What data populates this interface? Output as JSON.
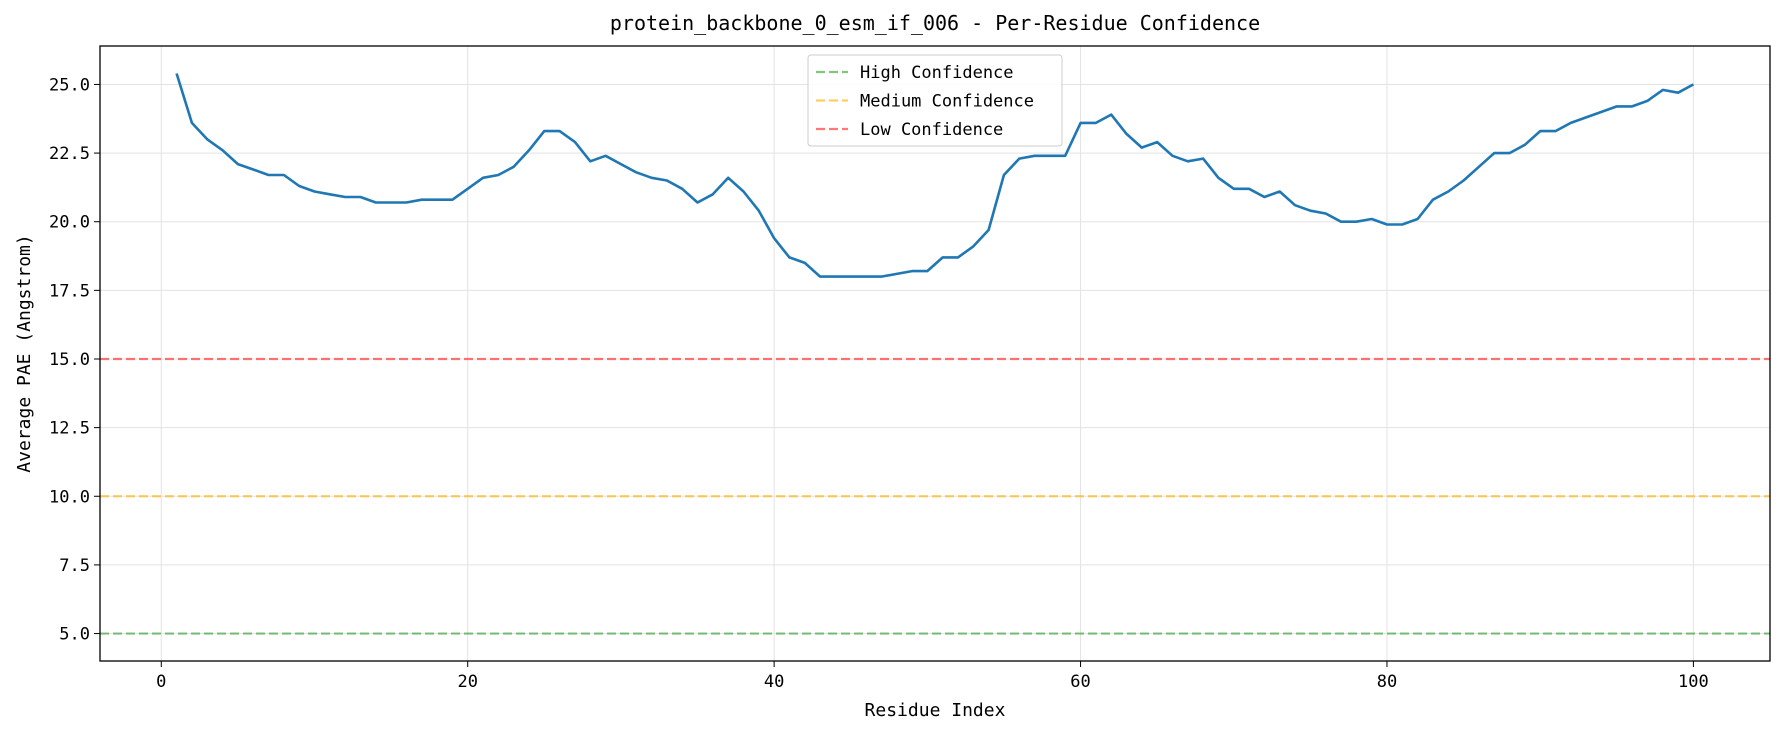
{
  "chart_data": {
    "type": "line",
    "title": "protein_backbone_0_esm_if_006 - Per-Residue Confidence",
    "xlabel": "Residue Index",
    "ylabel": "Average PAE (Angstrom)",
    "xlim": [
      -4,
      105
    ],
    "ylim": [
      4.0,
      26.4
    ],
    "x_ticks": [
      0,
      20,
      40,
      60,
      80,
      100
    ],
    "y_ticks": [
      5.0,
      7.5,
      10.0,
      12.5,
      15.0,
      17.5,
      20.0,
      22.5,
      25.0
    ],
    "x_tick_labels": [
      "0",
      "20",
      "40",
      "60",
      "80",
      "100"
    ],
    "y_tick_labels": [
      "5.0",
      "7.5",
      "10.0",
      "12.5",
      "15.0",
      "17.5",
      "20.0",
      "22.5",
      "25.0"
    ],
    "grid": true,
    "legend_position": "top-center",
    "series": [
      {
        "color": "#1f77b4",
        "x": [
          1,
          2,
          3,
          4,
          5,
          6,
          7,
          8,
          9,
          10,
          11,
          12,
          13,
          14,
          15,
          16,
          17,
          18,
          19,
          20,
          21,
          22,
          23,
          24,
          25,
          26,
          27,
          28,
          29,
          30,
          31,
          32,
          33,
          34,
          35,
          36,
          37,
          38,
          39,
          40,
          41,
          42,
          43,
          44,
          45,
          46,
          47,
          48,
          49,
          50,
          51,
          52,
          53,
          54,
          55,
          56,
          57,
          58,
          59,
          60,
          61,
          62,
          63,
          64,
          65,
          66,
          67,
          68,
          69,
          70,
          71,
          72,
          73,
          74,
          75,
          76,
          77,
          78,
          79,
          80,
          81,
          82,
          83,
          84,
          85,
          86,
          87,
          88,
          89,
          90,
          91,
          92,
          93,
          94,
          95,
          96,
          97,
          98,
          99,
          100
        ],
        "values": [
          25.4,
          23.6,
          23.0,
          22.6,
          22.1,
          21.9,
          21.7,
          21.7,
          21.3,
          21.1,
          21.0,
          20.9,
          20.9,
          20.7,
          20.7,
          20.7,
          20.8,
          20.8,
          20.8,
          21.2,
          21.6,
          21.7,
          22.0,
          22.6,
          23.3,
          23.3,
          22.9,
          22.2,
          22.4,
          22.1,
          21.8,
          21.6,
          21.5,
          21.2,
          20.7,
          21.0,
          21.6,
          21.1,
          20.4,
          19.4,
          18.7,
          18.5,
          18.0,
          18.0,
          18.0,
          18.0,
          18.0,
          18.1,
          18.2,
          18.2,
          18.7,
          18.7,
          19.1,
          19.7,
          21.7,
          22.3,
          22.4,
          22.4,
          22.4,
          23.6,
          23.6,
          23.9,
          23.2,
          22.7,
          22.9,
          22.4,
          22.2,
          22.3,
          21.6,
          21.2,
          21.2,
          20.9,
          21.1,
          20.6,
          20.4,
          20.3,
          20.0,
          20.0,
          20.1,
          19.9,
          19.9,
          20.1,
          20.8,
          21.1,
          21.5,
          22.0,
          22.5,
          22.5,
          22.8,
          23.3,
          23.3,
          23.6,
          23.8,
          24.0,
          24.2,
          24.2,
          24.4,
          24.8,
          24.7,
          25.0
        ]
      }
    ],
    "reference_lines": [
      {
        "name": "High Confidence",
        "y": 5.0,
        "color": "#2ca02c"
      },
      {
        "name": "Medium Confidence",
        "y": 10.0,
        "color": "#ffb000"
      },
      {
        "name": "Low Confidence",
        "y": 15.0,
        "color": "#ff2020"
      }
    ]
  }
}
